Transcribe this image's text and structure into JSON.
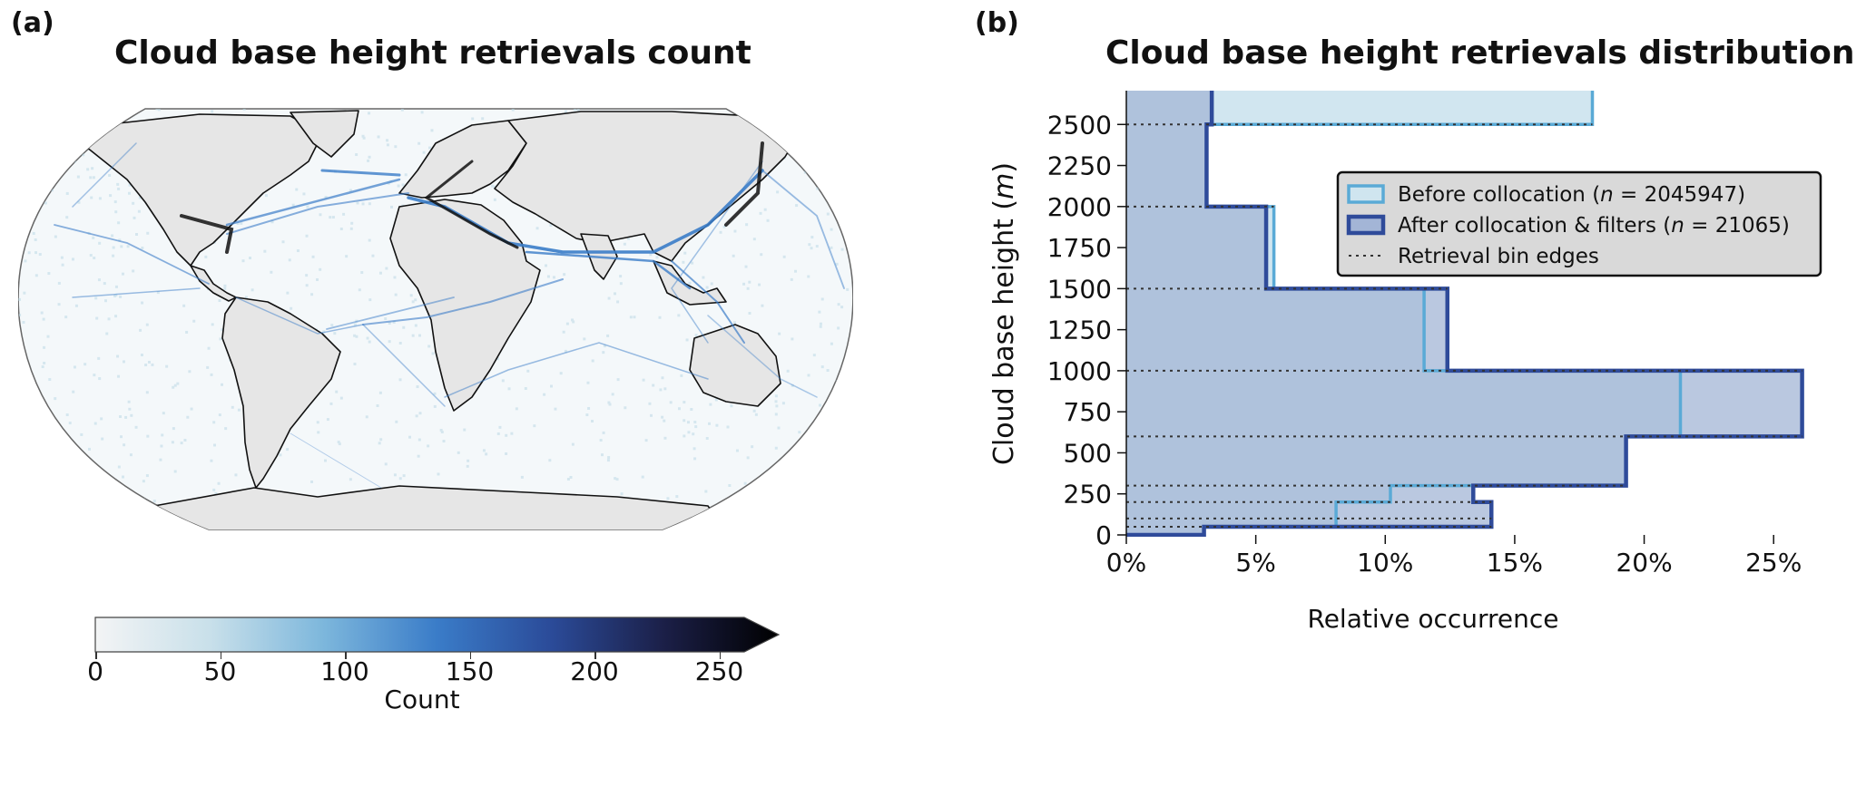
{
  "panel_a": {
    "label": "(a)",
    "title": "Cloud base height retrievals count",
    "colorbar": {
      "label": "Count",
      "ticks": [
        "0",
        "50",
        "100",
        "150",
        "200",
        "250"
      ],
      "range": [
        0,
        260
      ],
      "extend": "max",
      "colors": [
        "#f3f4f5",
        "#c9e0ea",
        "#7db7dc",
        "#3a7cc8",
        "#2b4b99",
        "#1b1f47",
        "#000000"
      ]
    },
    "map": {
      "projection": "Robinson",
      "land_color": "#e6e6e6",
      "route_color": "#3a7cc8"
    }
  },
  "chart_data": {
    "type": "histogram",
    "label": "(b)",
    "title": "Cloud base height retrievals distribution",
    "xlabel": "Relative occurrence",
    "ylabel_prefix": "Cloud base height (",
    "ylabel_unit": "m",
    "ylabel_suffix": ")",
    "xlim": [
      0,
      26.5
    ],
    "ylim": [
      0,
      2750
    ],
    "xticks": [
      0,
      5,
      10,
      15,
      20,
      25
    ],
    "xtick_labels": [
      "0%",
      "5%",
      "10%",
      "15%",
      "20%",
      "25%"
    ],
    "yticks": [
      0,
      250,
      500,
      750,
      1000,
      1250,
      1500,
      1750,
      2000,
      2250,
      2500
    ],
    "ytick_labels": [
      "0",
      "250",
      "500",
      "750",
      "1000",
      "1250",
      "1500",
      "1750",
      "2000",
      "2250",
      "2500"
    ],
    "bin_edges": [
      0,
      50,
      100,
      200,
      300,
      600,
      1000,
      1500,
      2000,
      2500,
      2750
    ],
    "retrieval_bin_edges": [
      50,
      100,
      200,
      300,
      600,
      1000,
      1500,
      2000,
      2500
    ],
    "series": [
      {
        "name": "Before collocation",
        "n": "2045947",
        "values": [
          3.0,
          8.1,
          8.1,
          10.2,
          19.3,
          21.4,
          11.5,
          5.7,
          3.1,
          18.0
        ],
        "edge": "#5aaad6",
        "fill": "#cfe5ef"
      },
      {
        "name": "After collocation & filters",
        "n": "21065",
        "values": [
          3.0,
          14.1,
          14.1,
          13.4,
          19.3,
          26.1,
          12.4,
          5.4,
          3.1,
          3.3
        ],
        "edge": "#2f4b9a",
        "fill": "#a3b5d6"
      }
    ],
    "legend": {
      "position": "upper right",
      "entries": [
        {
          "prefix": "Before collocation (",
          "var": "n",
          "mid": " = ",
          "value": "2045947",
          "suffix": ")"
        },
        {
          "prefix": "After collocation & filters (",
          "var": "n",
          "mid": " = ",
          "value": "21065",
          "suffix": ")"
        },
        {
          "prefix": "Retrieval bin edges",
          "var": "",
          "mid": "",
          "value": "",
          "suffix": ""
        }
      ]
    }
  }
}
